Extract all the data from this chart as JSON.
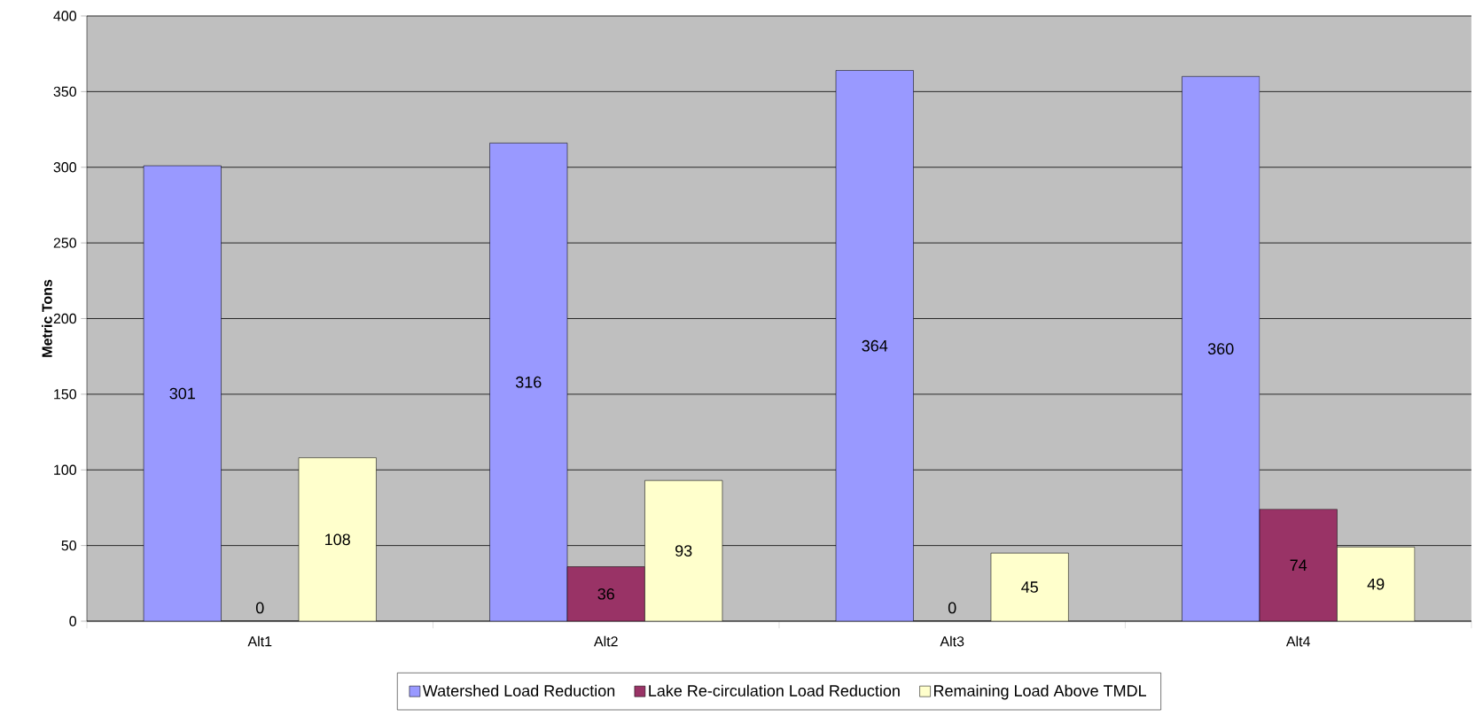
{
  "chart_data": {
    "type": "bar",
    "ylabel": "Metric Tons",
    "categories": [
      "Alt1",
      "Alt2",
      "Alt3",
      "Alt4"
    ],
    "series": [
      {
        "name": "Watershed Load Reduction",
        "color": "#9999ff",
        "values": [
          301,
          316,
          364,
          360
        ]
      },
      {
        "name": "Lake Re-circulation Load Reduction",
        "color": "#993366",
        "values": [
          0,
          36,
          0,
          74
        ]
      },
      {
        "name": "Remaining Load Above TMDL",
        "color": "#ffffcc",
        "values": [
          108,
          93,
          45,
          49
        ]
      }
    ],
    "ylim": [
      0,
      400
    ],
    "yticks": [
      0,
      50,
      100,
      150,
      200,
      250,
      300,
      350,
      400
    ],
    "grid": "y",
    "legend": "bottom",
    "data_labels": true
  }
}
